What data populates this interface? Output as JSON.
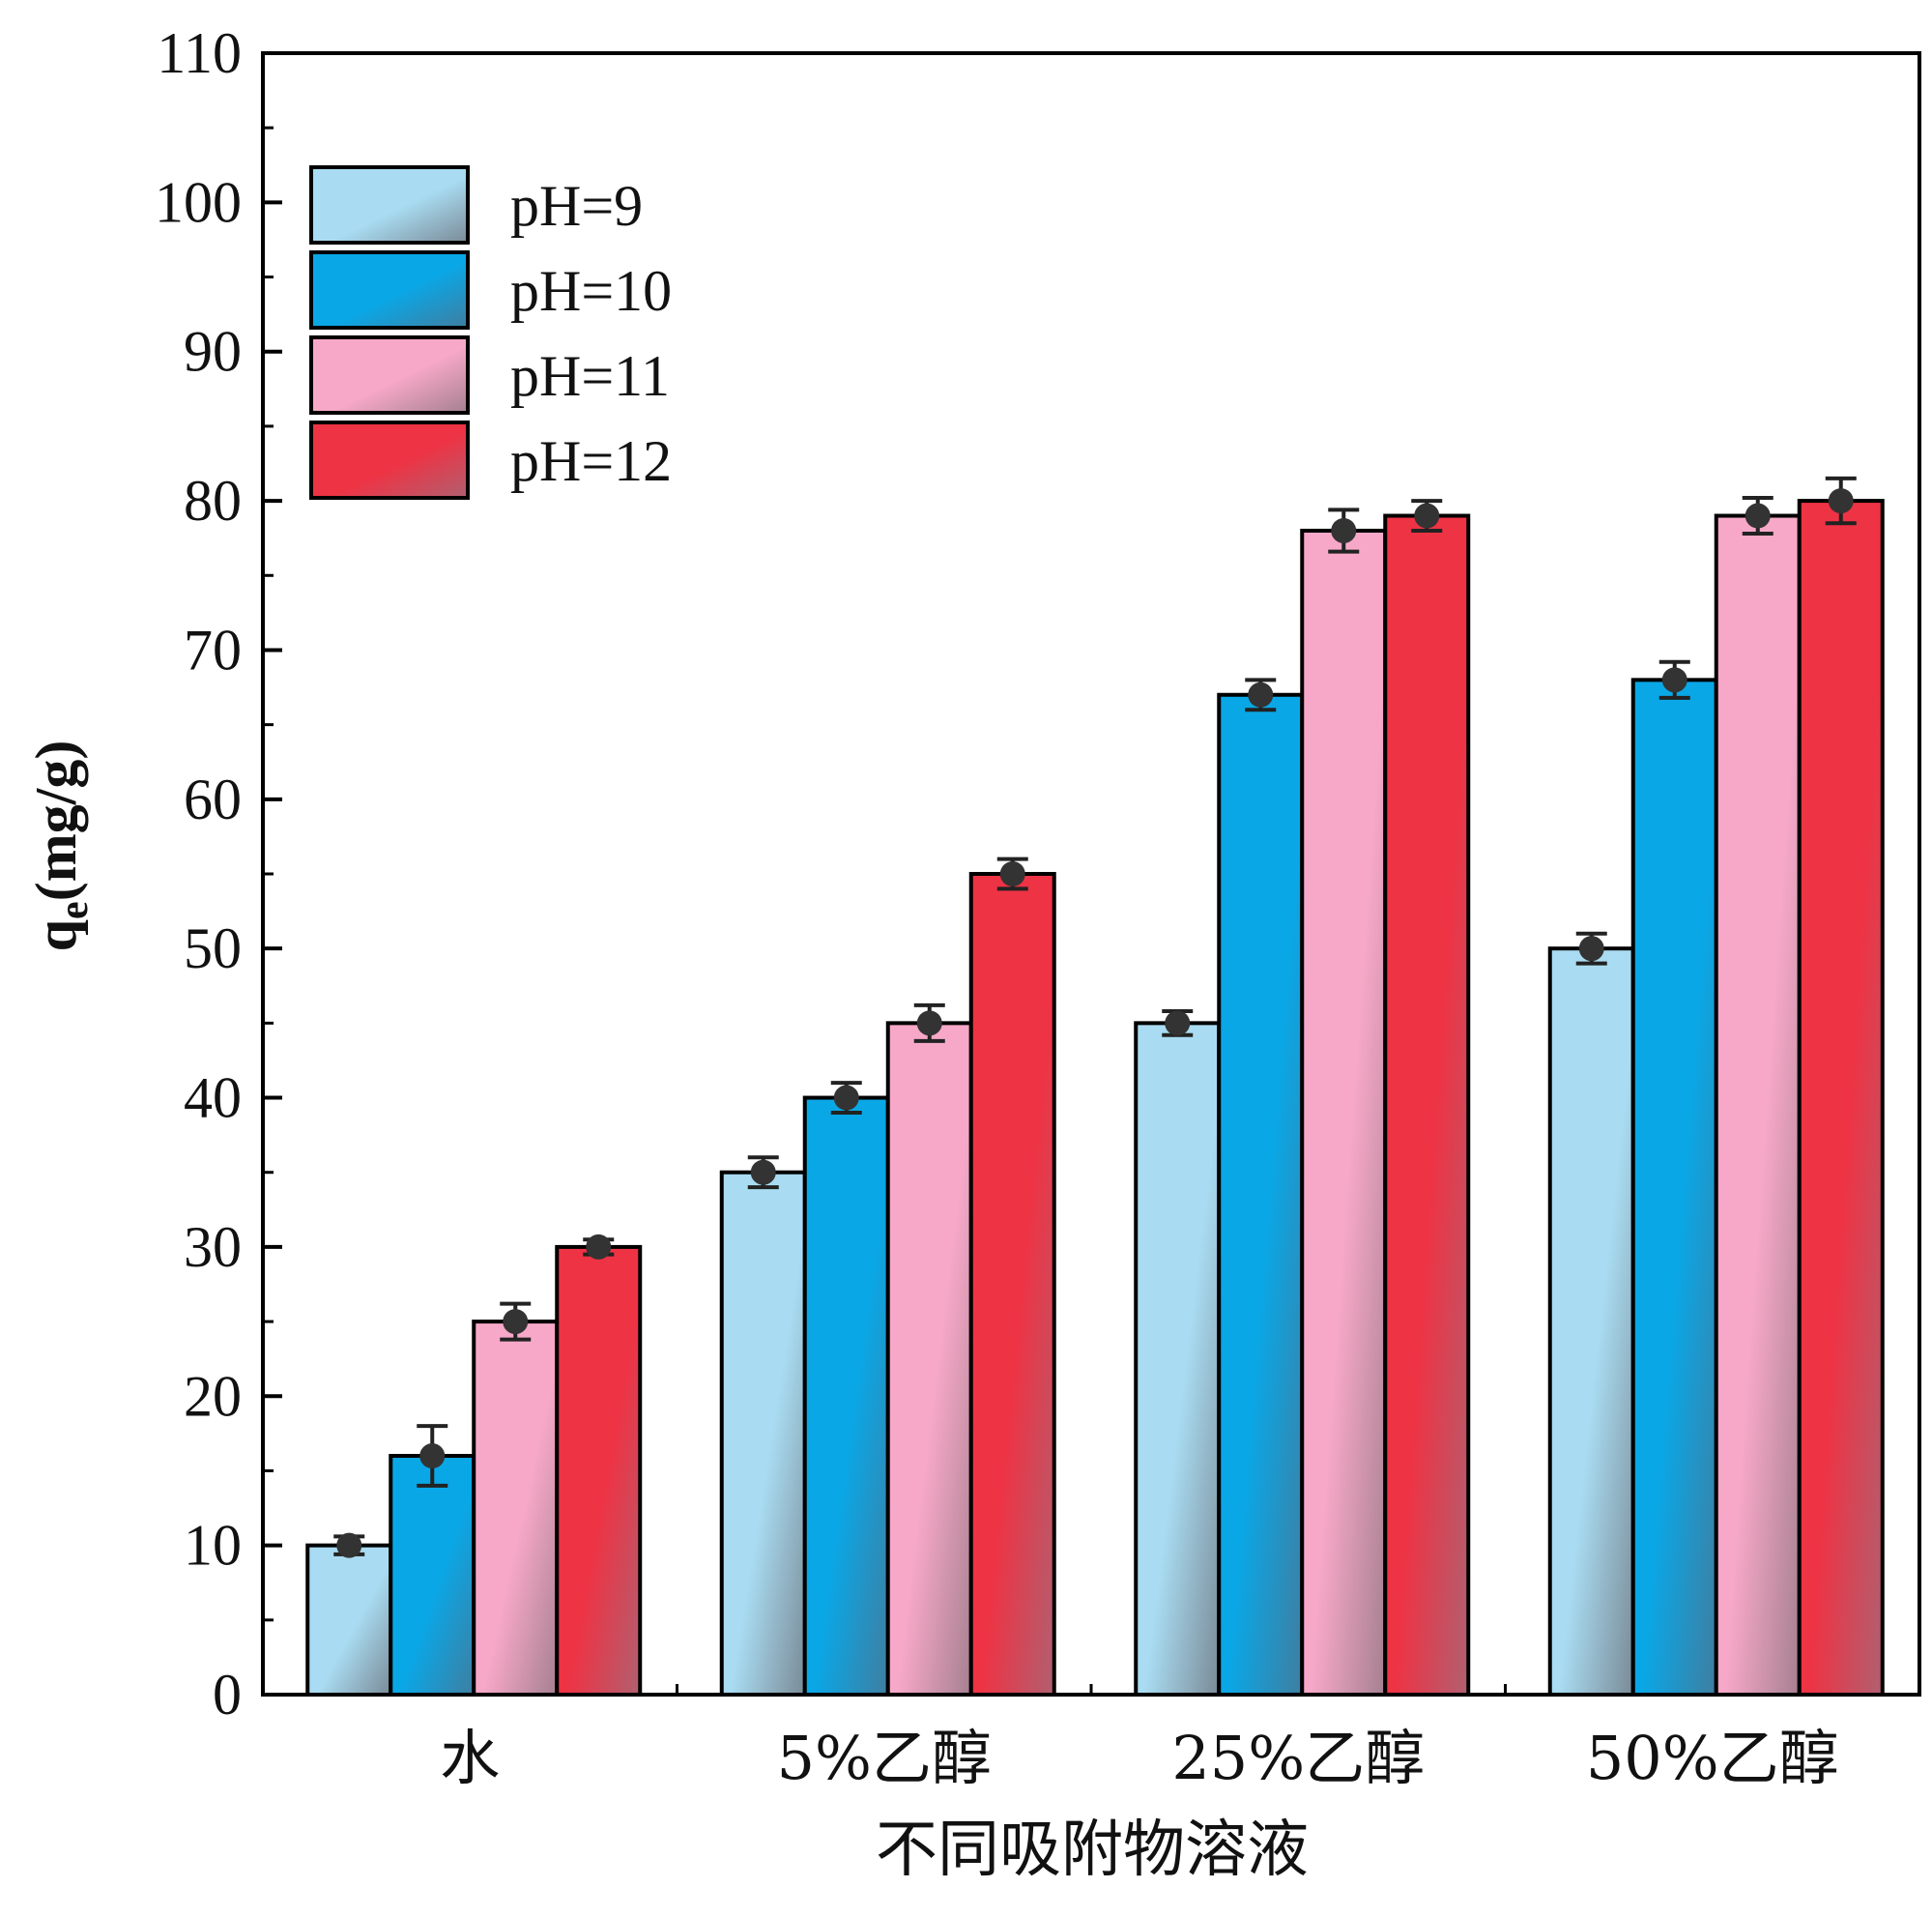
{
  "chart_data": {
    "type": "bar",
    "title": "",
    "xlabel": "不同吸附物溶液",
    "ylabel_main": "q",
    "ylabel_sub": "e",
    "ylabel_unit": "(mg/g)",
    "ylim": [
      0,
      110
    ],
    "yticks": [
      "0",
      "10",
      "20",
      "30",
      "40",
      "50",
      "60",
      "70",
      "80",
      "90",
      "100",
      "110"
    ],
    "categories": [
      "水",
      "5%乙醇",
      "25%乙醇",
      "50%乙醇"
    ],
    "legend_position": "top-left",
    "series": [
      {
        "name": "pH=9",
        "values": [
          10,
          35,
          45,
          50
        ],
        "errors": [
          0.6,
          1.0,
          0.8,
          1.0
        ],
        "color_light": "#a9dcf2",
        "color_dark": "#7a8a96"
      },
      {
        "name": "pH=10",
        "values": [
          16,
          40,
          67,
          68
        ],
        "errors": [
          2.0,
          1.0,
          1.0,
          1.2
        ],
        "color_light": "#0aa7e6",
        "color_dark": "#3f7ea0"
      },
      {
        "name": "pH=11",
        "values": [
          25,
          45,
          78,
          79
        ],
        "errors": [
          1.2,
          1.2,
          1.4,
          1.2
        ],
        "color_light": "#f7a8c8",
        "color_dark": "#a58090"
      },
      {
        "name": "pH=12",
        "values": [
          30,
          55,
          79,
          80
        ],
        "errors": [
          0.5,
          1.0,
          1.0,
          1.5
        ],
        "color_light": "#ee3344",
        "color_dark": "#b06070"
      }
    ]
  }
}
